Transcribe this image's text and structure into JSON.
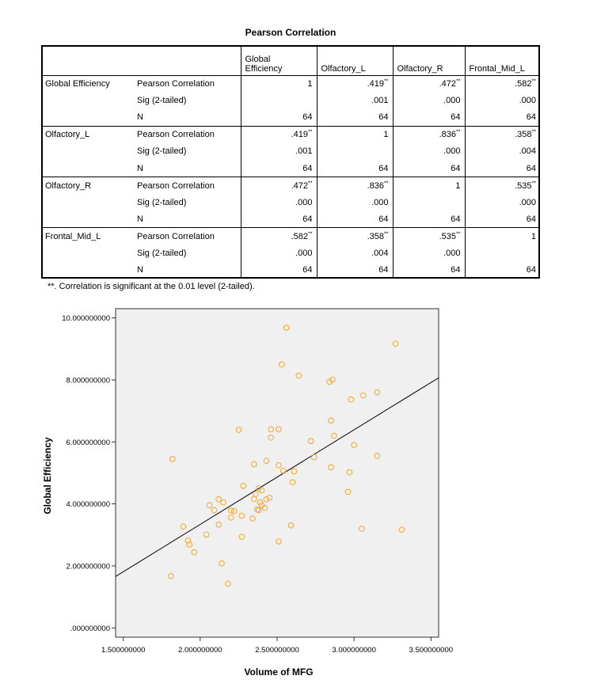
{
  "table": {
    "title": "Pearson Correlation",
    "columns": [
      "Global\nEfficiency",
      "Olfactory_L",
      "Olfactory_R",
      "Frontal_Mid_L"
    ],
    "columns_display": [
      [
        "Global",
        "Efficiency"
      ],
      [
        "Olfactory_L"
      ],
      [
        "Olfactory_R"
      ],
      [
        "Frontal_Mid_L"
      ]
    ],
    "groups": [
      {
        "label": "Global Efficiency",
        "rows": [
          {
            "stat": "Pearson Correlation",
            "cells": [
              {
                "v": "1",
                "s": ""
              },
              {
                "v": ".419",
                "s": "**"
              },
              {
                "v": ".472",
                "s": "**"
              },
              {
                "v": ".582",
                "s": "**"
              }
            ]
          },
          {
            "stat": "Sig (2-tailed)",
            "cells": [
              {
                "v": "",
                "s": ""
              },
              {
                "v": ".001",
                "s": ""
              },
              {
                "v": ".000",
                "s": ""
              },
              {
                "v": ".000",
                "s": ""
              }
            ]
          },
          {
            "stat": "N",
            "cells": [
              {
                "v": "64",
                "s": ""
              },
              {
                "v": "64",
                "s": ""
              },
              {
                "v": "64",
                "s": ""
              },
              {
                "v": "64",
                "s": ""
              }
            ]
          }
        ]
      },
      {
        "label": "Olfactory_L",
        "rows": [
          {
            "stat": "Pearson Correlation",
            "cells": [
              {
                "v": ".419",
                "s": "**"
              },
              {
                "v": "1",
                "s": ""
              },
              {
                "v": ".836",
                "s": "**"
              },
              {
                "v": ".358",
                "s": "**"
              }
            ]
          },
          {
            "stat": "Sig (2-tailed)",
            "cells": [
              {
                "v": ".001",
                "s": ""
              },
              {
                "v": "",
                "s": ""
              },
              {
                "v": ".000",
                "s": ""
              },
              {
                "v": ".004",
                "s": ""
              }
            ]
          },
          {
            "stat": "N",
            "cells": [
              {
                "v": "64",
                "s": ""
              },
              {
                "v": "64",
                "s": ""
              },
              {
                "v": "64",
                "s": ""
              },
              {
                "v": "64",
                "s": ""
              }
            ]
          }
        ]
      },
      {
        "label": "Olfactory_R",
        "rows": [
          {
            "stat": "Pearson Correlation",
            "cells": [
              {
                "v": ".472",
                "s": "**"
              },
              {
                "v": ".836",
                "s": "**"
              },
              {
                "v": "1",
                "s": ""
              },
              {
                "v": ".535",
                "s": "**"
              }
            ]
          },
          {
            "stat": "Sig (2-tailed)",
            "cells": [
              {
                "v": ".000",
                "s": ""
              },
              {
                "v": ".000",
                "s": ""
              },
              {
                "v": "",
                "s": ""
              },
              {
                "v": ".000",
                "s": ""
              }
            ]
          },
          {
            "stat": "N",
            "cells": [
              {
                "v": "64",
                "s": ""
              },
              {
                "v": "64",
                "s": ""
              },
              {
                "v": "64",
                "s": ""
              },
              {
                "v": "64",
                "s": ""
              }
            ]
          }
        ]
      },
      {
        "label": "Frontal_Mid_L",
        "rows": [
          {
            "stat": "Pearson Correlation",
            "cells": [
              {
                "v": ".582",
                "s": "**"
              },
              {
                "v": ".358",
                "s": "**"
              },
              {
                "v": ".535",
                "s": "**"
              },
              {
                "v": "1",
                "s": ""
              }
            ]
          },
          {
            "stat": "Sig (2-tailed)",
            "cells": [
              {
                "v": ".000",
                "s": ""
              },
              {
                "v": ".004",
                "s": ""
              },
              {
                "v": ".000",
                "s": ""
              },
              {
                "v": "",
                "s": ""
              }
            ]
          },
          {
            "stat": "N",
            "cells": [
              {
                "v": "64",
                "s": ""
              },
              {
                "v": "64",
                "s": ""
              },
              {
                "v": "64",
                "s": ""
              },
              {
                "v": "64",
                "s": ""
              }
            ]
          }
        ]
      }
    ],
    "footnote": "**. Correlation is significant at the 0.01 level (2-tailed)."
  },
  "chart_data": {
    "type": "scatter",
    "xlabel": "Volume of MFG",
    "ylabel": "Global Efficiency",
    "xlim": [
      1.45,
      3.55
    ],
    "ylim": [
      -0.3,
      10.3
    ],
    "x_ticks": [
      1.5,
      2.0,
      2.5,
      3.0,
      3.5
    ],
    "x_tick_labels": [
      "1.500000000",
      "2.000000000",
      "2.500000000",
      "3.000000000",
      "3.500000000"
    ],
    "y_ticks": [
      0,
      2,
      4,
      6,
      8,
      10
    ],
    "y_tick_labels": [
      ".000000000",
      "2.000000000",
      "4.000000000",
      "6.000000000",
      "8.000000000",
      "10.000000000"
    ],
    "fit_line": {
      "x": [
        1.45,
        3.55
      ],
      "y": [
        1.66,
        8.07
      ]
    },
    "marker_color": "#f5a623",
    "plot_bg": "#f0f0f0",
    "x": [
      2.56,
      2.53,
      2.64,
      2.86,
      2.84,
      3.27,
      3.15,
      3.06,
      2.98,
      2.85,
      2.87,
      3.0,
      3.15,
      2.74,
      2.25,
      2.46,
      2.51,
      2.46,
      2.72,
      2.35,
      2.43,
      2.51,
      2.54,
      2.61,
      2.6,
      2.38,
      2.28,
      2.45,
      2.43,
      2.35,
      2.36,
      2.39,
      2.42,
      2.4,
      2.37,
      2.22,
      2.2,
      2.12,
      2.06,
      2.15,
      2.09,
      2.2,
      2.27,
      2.34,
      2.38,
      2.12,
      2.04,
      2.27,
      2.59,
      2.51,
      1.82,
      1.89,
      1.92,
      1.93,
      1.96,
      2.14,
      1.81,
      2.18,
      2.97,
      2.96,
      2.85,
      3.05,
      3.31,
      2.4
    ],
    "y": [
      9.69,
      8.5,
      8.14,
      8.01,
      7.94,
      9.17,
      7.6,
      7.5,
      7.37,
      6.69,
      6.2,
      5.9,
      5.55,
      5.51,
      6.39,
      6.41,
      6.41,
      6.14,
      6.03,
      5.28,
      5.39,
      5.25,
      5.07,
      5.05,
      4.7,
      4.5,
      4.58,
      4.2,
      4.15,
      4.16,
      4.32,
      4.05,
      3.87,
      3.96,
      3.82,
      3.77,
      3.79,
      4.15,
      3.96,
      4.05,
      3.8,
      3.56,
      3.62,
      3.53,
      3.8,
      3.33,
      3.01,
      2.94,
      3.31,
      2.79,
      5.45,
      3.27,
      2.82,
      2.69,
      2.44,
      2.08,
      1.67,
      1.43,
      5.02,
      4.39,
      5.18,
      3.2,
      3.17,
      4.44
    ]
  }
}
